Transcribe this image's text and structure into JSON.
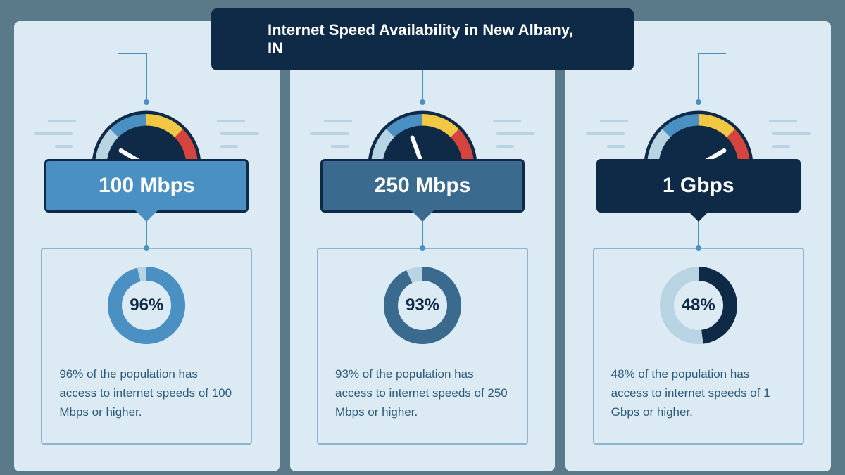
{
  "title": "Internet Speed Availability in New Albany, IN",
  "colors": {
    "page_bg": "#5a7a8a",
    "card_bg": "#dceaf4",
    "title_bg": "#0e2a47",
    "title_text": "#ffffff",
    "connector": "#4a90c2",
    "box_border": "#8db5d0",
    "gauge_outline": "#0e2a47",
    "gauge_segments": [
      "#b8d4e3",
      "#4a90c2",
      "#f2c744",
      "#d6453d"
    ],
    "gauge_center": "#0e2a47",
    "needle": "#ffffff",
    "speed_line": "#b8d4e3"
  },
  "gauge": {
    "outer_radius": 75,
    "inner_radius": 54,
    "stroke_width": 5
  },
  "cards": [
    {
      "speed_label": "100 Mbps",
      "badge_bg": "#4a90c2",
      "badge_text": "#ffffff",
      "needle_angle": -60,
      "percent": 96,
      "percent_label": "96%",
      "donut_fg": "#4a90c2",
      "donut_bg": "#b8d4e3",
      "pct_color": "#0e2a47",
      "desc_color": "#2c5a7a",
      "description": "96% of the population has access to internet speeds of 100 Mbps or higher."
    },
    {
      "speed_label": "250 Mbps",
      "badge_bg": "#3a6a8e",
      "badge_text": "#ffffff",
      "needle_angle": -20,
      "percent": 93,
      "percent_label": "93%",
      "donut_fg": "#3a6a8e",
      "donut_bg": "#b8d4e3",
      "pct_color": "#0e2a47",
      "desc_color": "#2c5a7a",
      "description": "93% of the population has access to internet speeds of 250 Mbps or higher."
    },
    {
      "speed_label": "1 Gbps",
      "badge_bg": "#0e2a47",
      "badge_text": "#ffffff",
      "needle_angle": 60,
      "percent": 48,
      "percent_label": "48%",
      "donut_fg": "#0e2a47",
      "donut_bg": "#b8d4e3",
      "pct_color": "#0e2a47",
      "desc_color": "#2c5a7a",
      "description": "48% of the population has access to internet speeds of 1 Gbps or higher."
    }
  ]
}
